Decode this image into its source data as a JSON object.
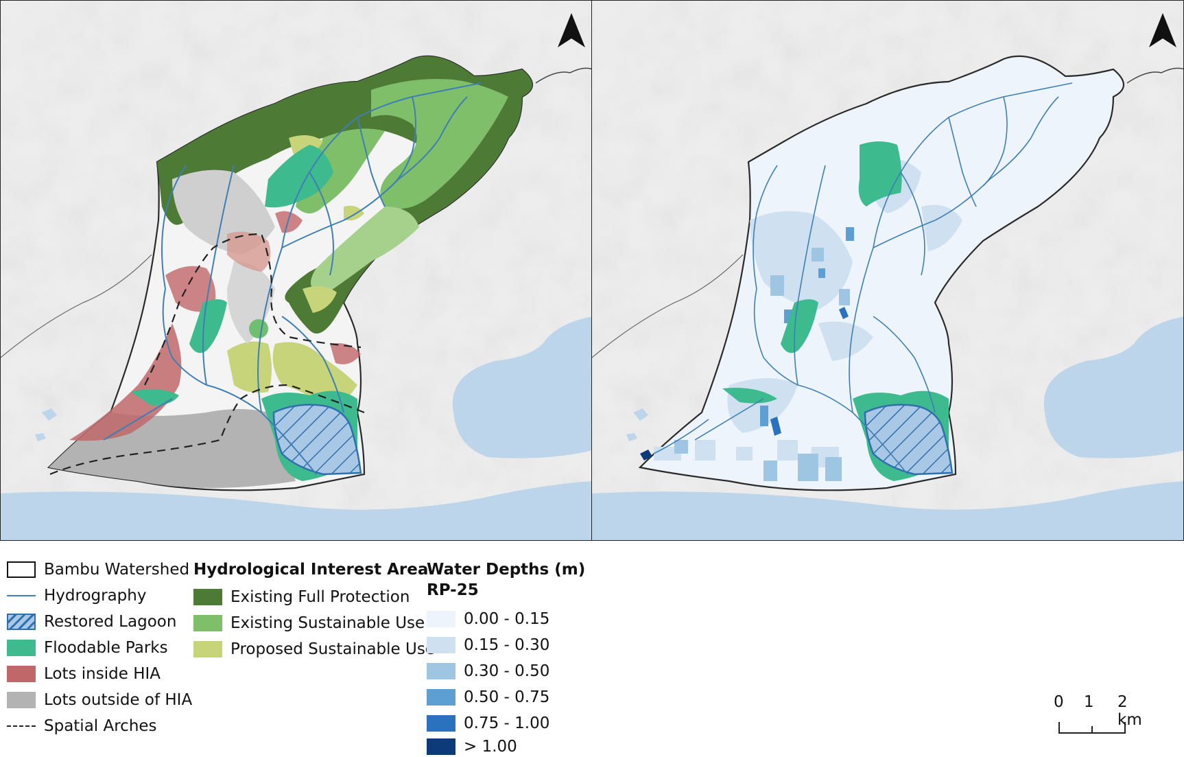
{
  "map": {
    "north_arrow_label": "north-arrow",
    "panels": [
      "land-use-proposal",
      "water-depths-rp25"
    ]
  },
  "legend": {
    "base": [
      {
        "label": "Bambu Watershed",
        "symbol": "outline-box",
        "color": "#111111"
      },
      {
        "label": "Hydrography",
        "symbol": "line",
        "color": "#3d7fb5"
      },
      {
        "label": "Restored Lagoon",
        "symbol": "hatch",
        "color": "#2f6fae"
      },
      {
        "label": "Floodable Parks",
        "symbol": "fill",
        "color": "#3dba8e"
      },
      {
        "label": "Lots inside HIA",
        "symbol": "fill",
        "color": "#c0676a"
      },
      {
        "label": "Lots outside of HIA",
        "symbol": "fill",
        "color": "#b3b3b3"
      },
      {
        "label": "Spatial Arches",
        "symbol": "dash",
        "color": "#222222"
      }
    ],
    "hia": {
      "title": "Hydrological Interest Area",
      "items": [
        {
          "label": "Existing Full Protection",
          "color": "#4d7a35"
        },
        {
          "label": "Existing Sustainable Use",
          "color": "#7fbf6a"
        },
        {
          "label": "Proposed Sustainable Use",
          "color": "#c8d47a"
        }
      ]
    },
    "depths": {
      "title": "Water Depths (m)",
      "subtitle": "RP-25",
      "items": [
        {
          "label": "0.00 - 0.15",
          "color": "#eef4fb"
        },
        {
          "label": "0.15 - 0.30",
          "color": "#cfe0f1"
        },
        {
          "label": "0.30 - 0.50",
          "color": "#9ec6e3"
        },
        {
          "label": "0.50 - 0.75",
          "color": "#5d9fd2"
        },
        {
          "label": "0.75 - 1.00",
          "color": "#2a72bd"
        },
        {
          "label": "> 1.00",
          "color": "#0d3b7a"
        }
      ]
    }
  },
  "scale_bar": {
    "labels": [
      "0",
      "1",
      "2 km"
    ]
  }
}
